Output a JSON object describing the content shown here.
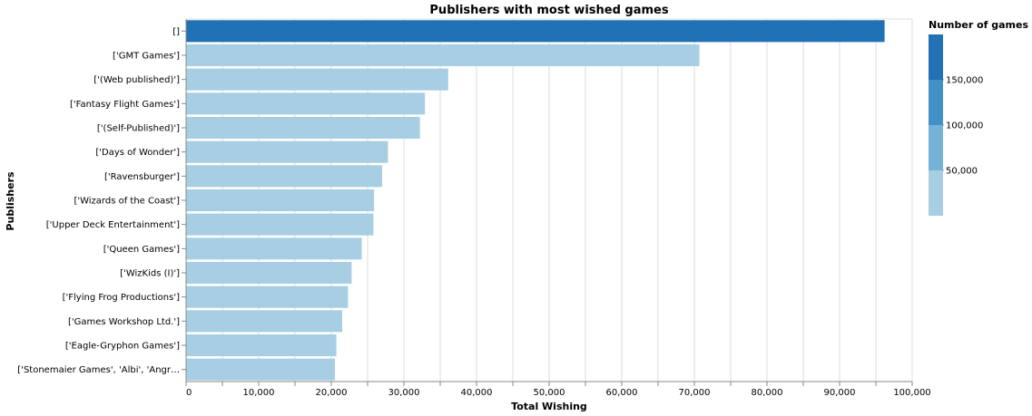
{
  "chart_data": {
    "type": "bar",
    "orientation": "horizontal",
    "title": "Publishers with most wished games",
    "xlabel": "Total Wishing",
    "ylabel": "Publishers",
    "xlim": [
      0,
      100000
    ],
    "x_ticks": [
      "0",
      "10,000",
      "20,000",
      "30,000",
      "40,000",
      "50,000",
      "60,000",
      "70,000",
      "80,000",
      "90,000",
      "100,000"
    ],
    "x_tick_values": [
      0,
      10000,
      20000,
      30000,
      40000,
      50000,
      60000,
      70000,
      80000,
      90000,
      100000
    ],
    "grid": true,
    "categories": [
      "[]",
      "['GMT Games']",
      "['(Web published)']",
      "['Fantasy Flight Games']",
      "['(Self-Published)']",
      "['Days of Wonder']",
      "['Ravensburger']",
      "['Wizards of the Coast']",
      "['Upper Deck Entertainment']",
      "['Queen Games']",
      "['WizKids (I)']",
      "['Flying Frog Productions']",
      "['Games Workshop Ltd.']",
      "['Eagle-Gryphon Games']",
      "['Stonemaier Games', 'Albi', 'Angr…"
    ],
    "values": [
      96200,
      70700,
      36100,
      32900,
      32200,
      27800,
      27000,
      25900,
      25800,
      24200,
      22800,
      22300,
      21500,
      20700,
      20500
    ],
    "color_values": [
      185000,
      20000,
      20000,
      20000,
      20000,
      20000,
      20000,
      20000,
      20000,
      20000,
      20000,
      20000,
      20000,
      20000,
      20000
    ],
    "legend": {
      "title": "Number of games",
      "placement": "right",
      "labels": [
        "150,000",
        "100,000",
        "50,000"
      ],
      "label_values": [
        150000,
        100000,
        50000
      ],
      "domain": [
        0,
        200000
      ],
      "colors": [
        "#a8cee4",
        "#76b2d8",
        "#4191c6",
        "#2171b5"
      ]
    }
  }
}
